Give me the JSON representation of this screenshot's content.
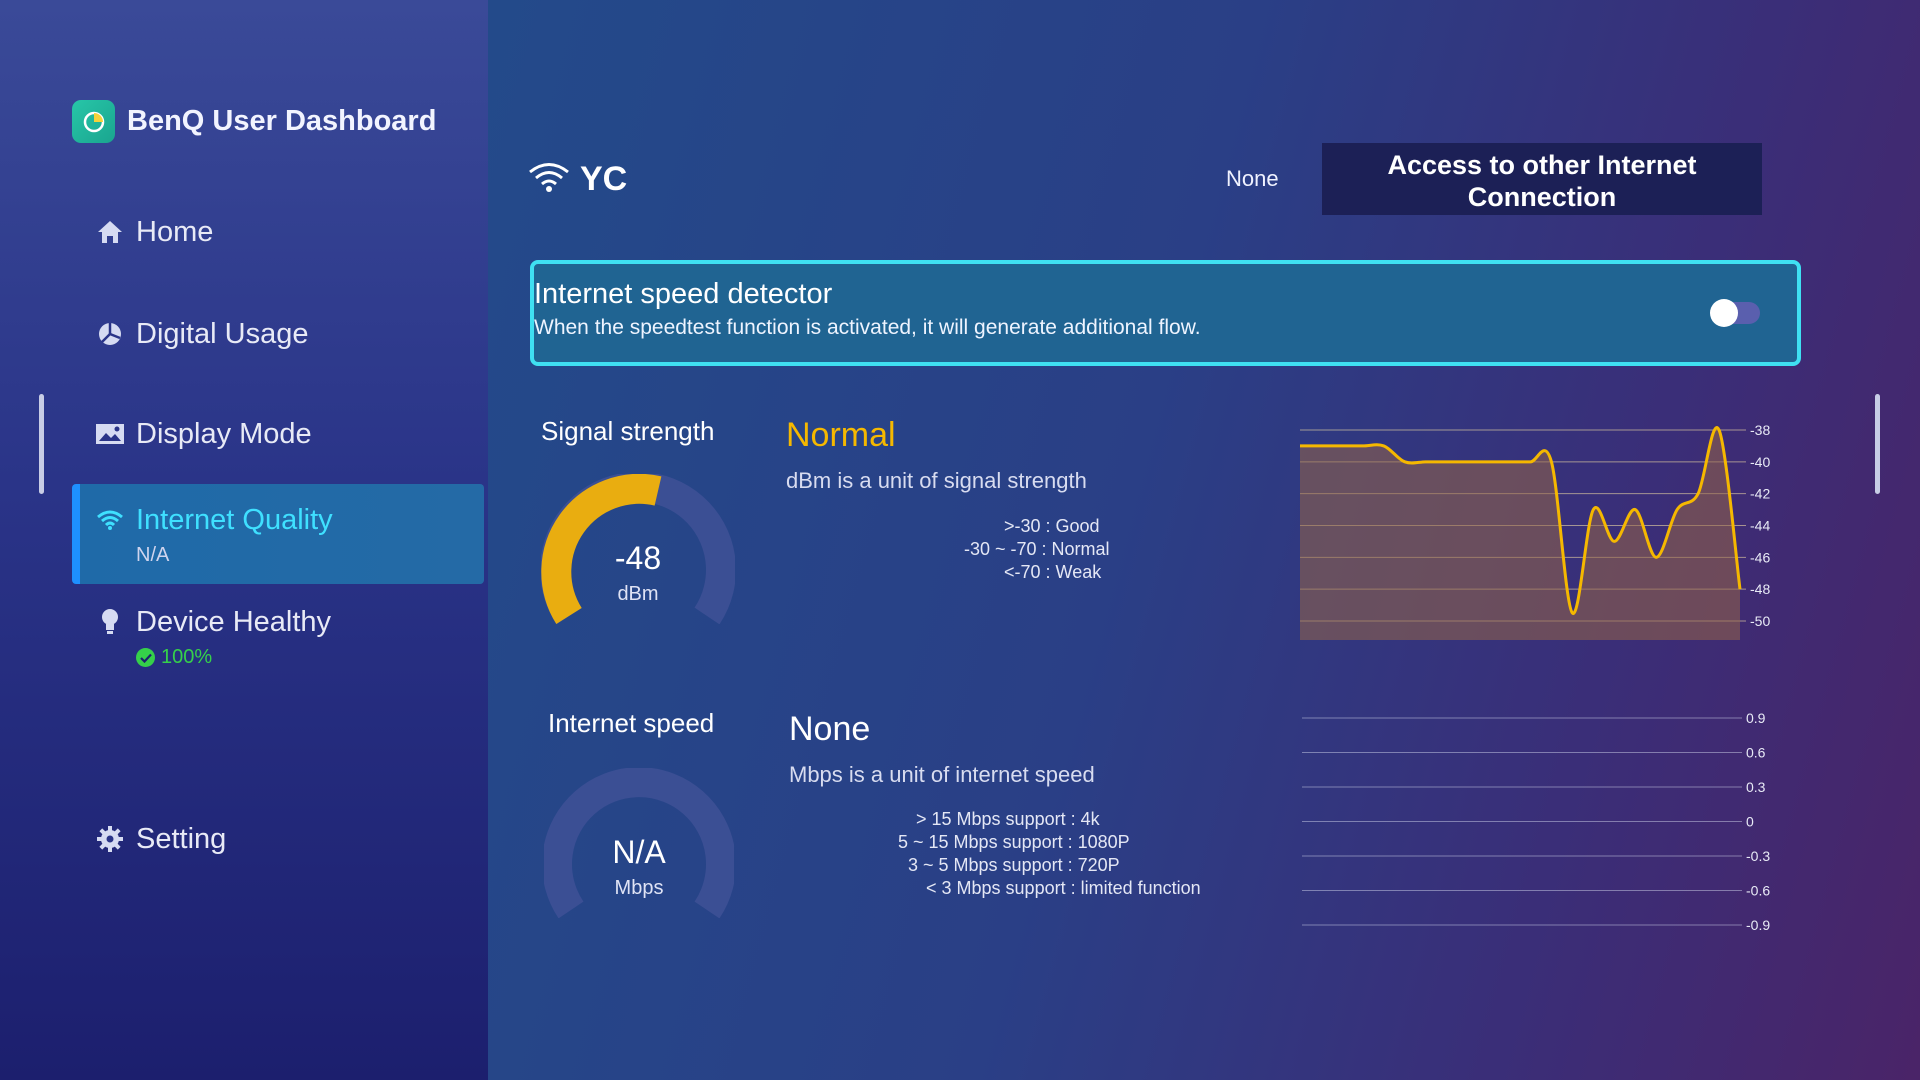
{
  "app": {
    "title": "BenQ User Dashboard"
  },
  "sidebar": {
    "items": [
      {
        "label": "Home",
        "icon": "home-icon"
      },
      {
        "label": "Digital Usage",
        "icon": "pie-chart-icon"
      },
      {
        "label": "Display Mode",
        "icon": "image-icon"
      },
      {
        "label": "Internet Quality",
        "sub": "N/A",
        "icon": "wifi-icon",
        "active": true
      },
      {
        "label": "Device Healthy",
        "sub": "100%",
        "icon": "lightbulb-icon"
      },
      {
        "label": "Setting",
        "icon": "gear-icon"
      }
    ]
  },
  "header": {
    "ssid": "YC",
    "connection_status": "None",
    "access_button": "Access to other Internet Connection"
  },
  "detector": {
    "title": "Internet speed detector",
    "description": "When the speedtest function is activated, it will generate additional flow.",
    "enabled": false
  },
  "signal": {
    "title": "Signal strength",
    "status": "Normal",
    "status_color": "#f5b800",
    "value": "-48",
    "unit": "dBm",
    "unit_desc": "dBm is a unit of signal strength",
    "legend": [
      ">-30 : Good",
      "-30 ~ -70 : Normal",
      "<-70 : Weak"
    ]
  },
  "speed": {
    "title": "Internet speed",
    "status": "None",
    "value": "N/A",
    "unit": "Mbps",
    "unit_desc": "Mbps is a unit of internet speed",
    "legend": [
      "> 15 Mbps support : 4k",
      "5 ~ 15 Mbps support : 1080P",
      "3 ~ 5 Mbps support : 720P",
      "< 3 Mbps support : limited function"
    ]
  },
  "chart_data": [
    {
      "type": "area",
      "series": [
        {
          "values": [
            -39,
            -39,
            -39,
            -39,
            -39,
            -40,
            -40,
            -40,
            -40,
            -40,
            -40,
            -40,
            -40,
            -49.5,
            -43,
            -45,
            -43,
            -46,
            -43,
            -42,
            -38,
            -48
          ]
        }
      ],
      "yticks": [
        "-38",
        "-40",
        "-42",
        "-44",
        "-46",
        "-48",
        "-50"
      ],
      "ylim": [
        -50,
        -38
      ],
      "grid": true,
      "line_color": "#f5b800"
    },
    {
      "type": "line",
      "series": [],
      "yticks": [
        "0.9",
        "0.6",
        "0.3",
        "0",
        "-0.3",
        "-0.6",
        "-0.9"
      ],
      "ylim": [
        -0.9,
        0.9
      ],
      "grid": true
    }
  ]
}
